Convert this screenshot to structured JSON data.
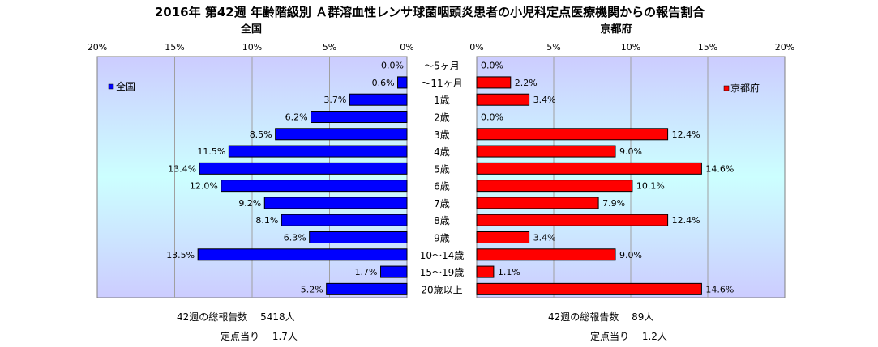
{
  "chart_data": {
    "type": "bar",
    "title": "2016年 第42週 年齢階級別 Ａ群溶血性レンサ球菌咽頭炎患者の小児科定点医療機関からの報告割合",
    "categories": [
      "〜5ヶ月",
      "〜11ヶ月",
      "1歳",
      "2歳",
      "3歳",
      "4歳",
      "5歳",
      "6歳",
      "7歳",
      "8歳",
      "9歳",
      "10〜14歳",
      "15〜19歳",
      "20歳以上"
    ],
    "xlim": [
      0,
      20
    ],
    "x_ticks": [
      "0%",
      "5%",
      "10%",
      "15%",
      "20%"
    ],
    "left_ticks": [
      "20%",
      "15%",
      "10%",
      "5%",
      "0%"
    ],
    "series": [
      {
        "name": "全国",
        "heading": "全国",
        "color": "#0000ff",
        "legend_position": "left",
        "values": [
          0.0,
          0.6,
          3.7,
          6.2,
          8.5,
          11.5,
          13.4,
          12.0,
          9.2,
          8.1,
          6.3,
          13.5,
          1.7,
          5.2
        ],
        "labels": [
          "0.0%",
          "0.6%",
          "3.7%",
          "6.2%",
          "8.5%",
          "11.5%",
          "13.4%",
          "12.0%",
          "9.2%",
          "8.1%",
          "6.3%",
          "13.5%",
          "1.7%",
          "5.2%"
        ]
      },
      {
        "name": "京都府",
        "heading": "京都府",
        "color": "#ff0000",
        "legend_position": "right",
        "values": [
          0.0,
          2.2,
          3.4,
          0.0,
          12.4,
          9.0,
          14.6,
          10.1,
          7.9,
          12.4,
          3.4,
          9.0,
          1.1,
          14.6
        ],
        "labels": [
          "0.0%",
          "2.2%",
          "3.4%",
          "0.0%",
          "12.4%",
          "9.0%",
          "14.6%",
          "10.1%",
          "7.9%",
          "12.4%",
          "3.4%",
          "9.0%",
          "1.1%",
          "14.6%"
        ]
      }
    ],
    "grid": true
  },
  "footer": {
    "national_total": "42週の総報告数　 5418人",
    "national_per_site": "定点当り　 1.7人",
    "kyoto_total": "42週の総報告数　 89人",
    "kyoto_per_site": "定点当り　 1.2人"
  }
}
